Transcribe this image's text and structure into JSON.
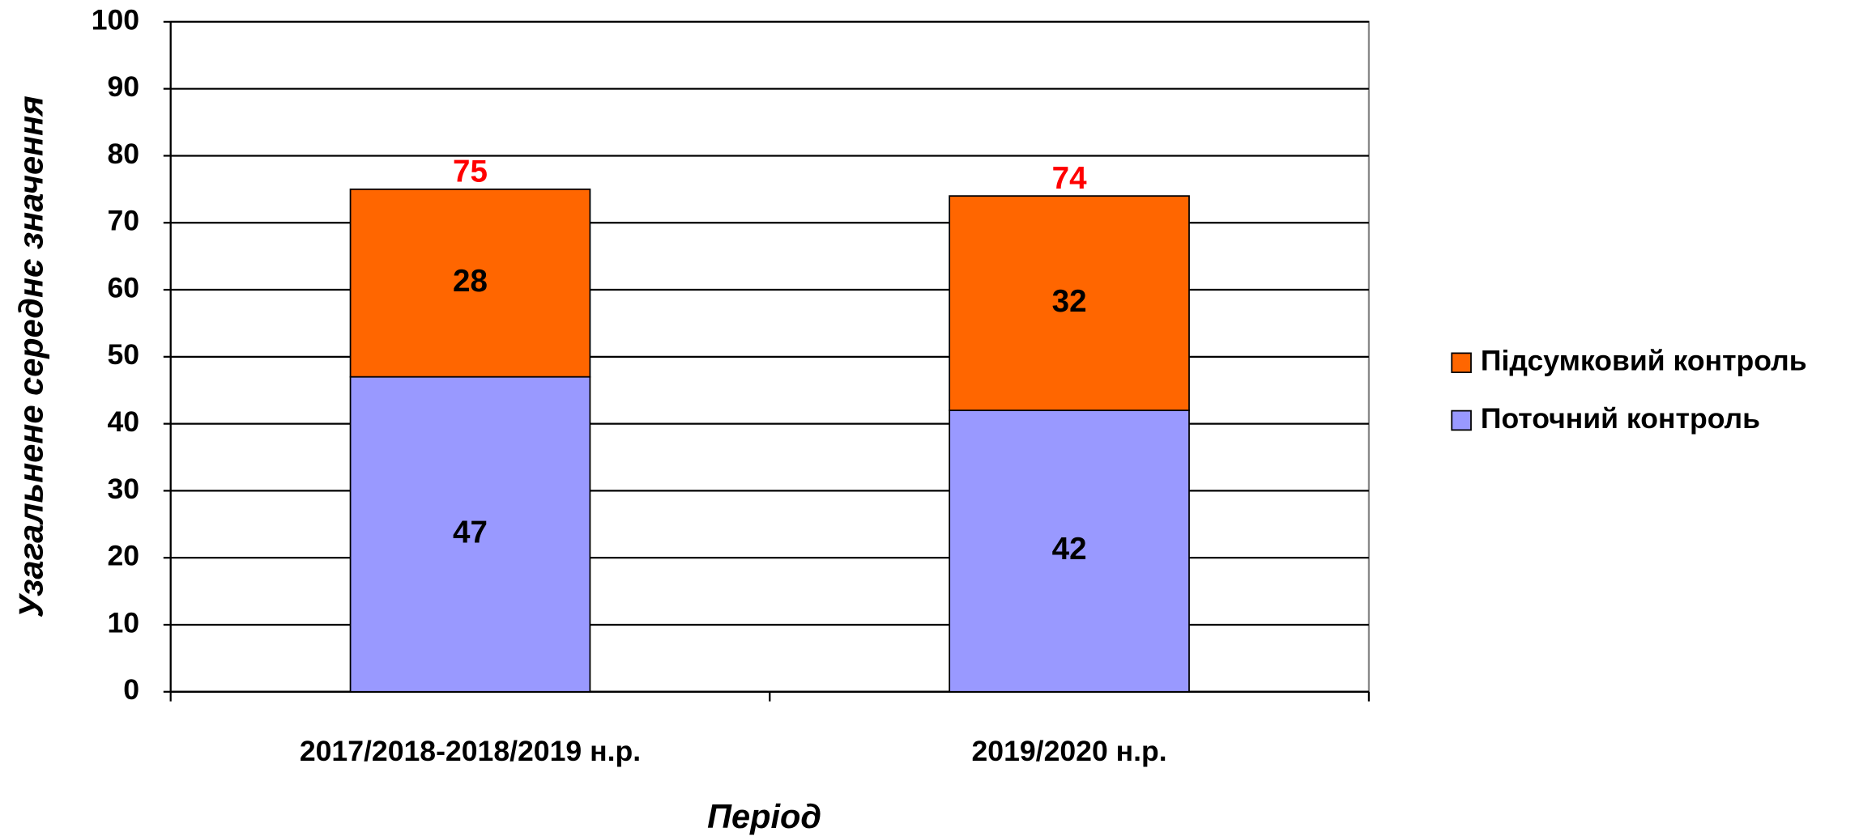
{
  "chart_data": {
    "type": "stacked_bar",
    "categories": [
      "2017/2018-2018/2019 н.р.",
      "2019/2020 н.р."
    ],
    "series": [
      {
        "name": "Поточний контроль",
        "color": "#9999ff",
        "values": [
          47,
          42
        ]
      },
      {
        "name": "Підсумковий контроль",
        "color": "#ff6600",
        "values": [
          28,
          32
        ]
      }
    ],
    "totals": [
      75,
      74
    ],
    "total_color": "#ff0000",
    "x_label": "Період",
    "y_label": "Узагальнене середнє значення",
    "ylim": [
      0,
      100
    ],
    "yticks": [
      0,
      10,
      20,
      30,
      40,
      50,
      60,
      70,
      80,
      90,
      100
    ],
    "grid": true,
    "legend": "right"
  }
}
